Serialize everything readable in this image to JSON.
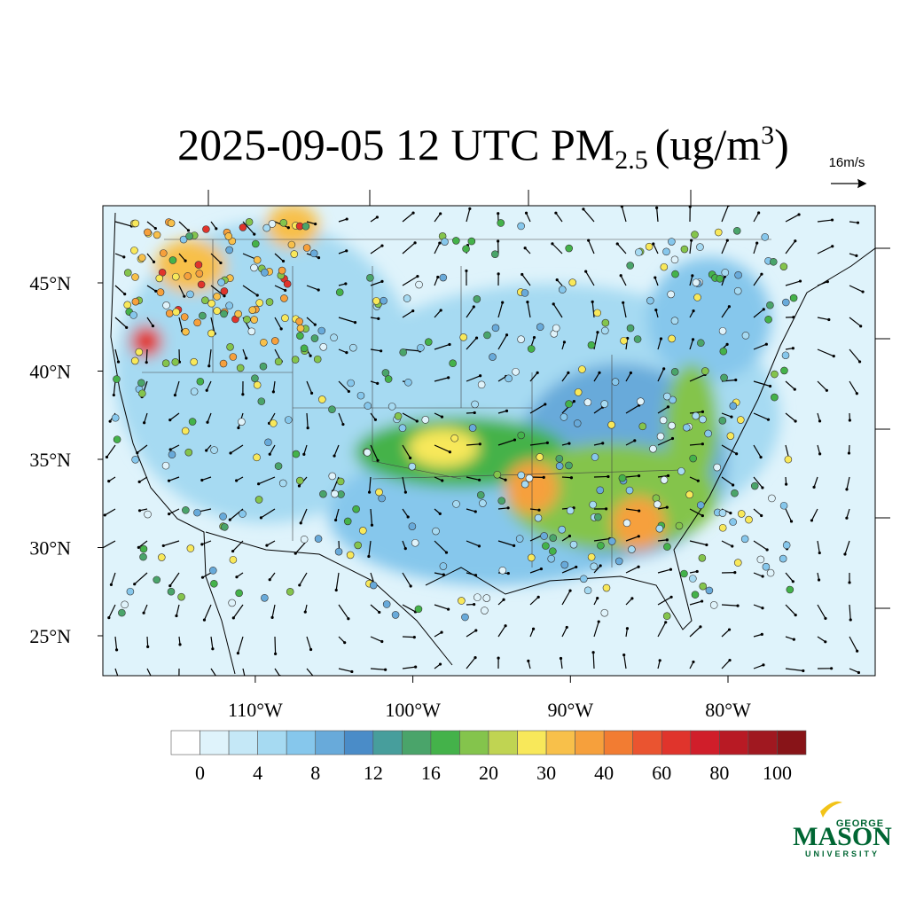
{
  "title": {
    "main": "2025-09-05 12 UTC PM",
    "sub": "2.5",
    "unit": "(ug/m",
    "sup": "3",
    "close": ")"
  },
  "reference_vector": "16m/s",
  "map": {
    "lat_ticks": [
      {
        "value": 25,
        "label": "25°N"
      },
      {
        "value": 30,
        "label": "30°N"
      },
      {
        "value": 35,
        "label": "35°N"
      },
      {
        "value": 40,
        "label": "40°N"
      },
      {
        "value": 45,
        "label": "45°N"
      }
    ],
    "lon_ticks": [
      {
        "value": -110,
        "label": "110°W"
      },
      {
        "value": -100,
        "label": "100°W"
      },
      {
        "value": -90,
        "label": "90°W"
      },
      {
        "value": -80,
        "label": "80°W"
      }
    ]
  },
  "colorbar": {
    "colors": [
      "#ffffff",
      "#dff3fb",
      "#c5e8f7",
      "#a6daf2",
      "#86c7ec",
      "#68aada",
      "#4a8cc8",
      "#479e9c",
      "#4aa46a",
      "#44b24a",
      "#84c44c",
      "#c0d452",
      "#f8e85a",
      "#f8c04a",
      "#f6a03c",
      "#f27c32",
      "#ea5430",
      "#e0342c",
      "#d01e2a",
      "#b81a24",
      "#a01820",
      "#881418"
    ],
    "ticks": [
      0,
      4,
      8,
      12,
      16,
      20,
      30,
      40,
      60,
      80,
      100
    ]
  },
  "logo": {
    "top": "GEORGE",
    "name": "MASON",
    "bottom": "UNIVERSITY"
  }
}
